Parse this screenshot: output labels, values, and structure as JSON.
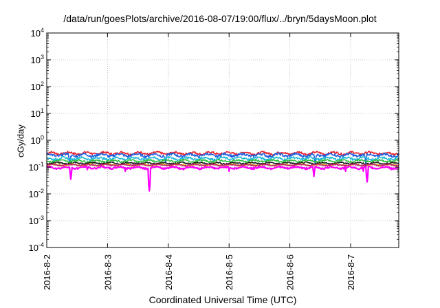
{
  "chart_data": {
    "type": "line",
    "title": "/data/run/goesPlots/archive/2016-08-07/19:00/flux/../bryn/5daysMoon.plot",
    "xlabel": "Coordinated Universal Time (UTC)",
    "ylabel": "cGy/day",
    "yscale": "log",
    "ylim": [
      0.0001,
      10000
    ],
    "y_ticks": [
      {
        "value": 0.0001,
        "base": "10",
        "exp": "-4"
      },
      {
        "value": 0.001,
        "base": "10",
        "exp": "-3"
      },
      {
        "value": 0.01,
        "base": "10",
        "exp": "-2"
      },
      {
        "value": 0.1,
        "base": "10",
        "exp": "-1"
      },
      {
        "value": 1,
        "base": "10",
        "exp": "0"
      },
      {
        "value": 10,
        "base": "10",
        "exp": "1"
      },
      {
        "value": 100,
        "base": "10",
        "exp": "2"
      },
      {
        "value": 1000,
        "base": "10",
        "exp": "3"
      },
      {
        "value": 10000,
        "base": "10",
        "exp": "4"
      }
    ],
    "xlim": [
      "2016-08-02T00:00",
      "2016-08-07T19:00"
    ],
    "x_ticks": [
      {
        "value": "2016-08-02T00:00",
        "label": "2016-8-2"
      },
      {
        "value": "2016-08-03T00:00",
        "label": "2016-8-3"
      },
      {
        "value": "2016-08-04T00:00",
        "label": "2016-8-4"
      },
      {
        "value": "2016-08-05T00:00",
        "label": "2016-8-5"
      },
      {
        "value": "2016-08-06T00:00",
        "label": "2016-8-6"
      },
      {
        "value": "2016-08-07T00:00",
        "label": "2016-8-7"
      }
    ],
    "grid": true,
    "series": [
      {
        "color": "#e8202a",
        "level": 0.33,
        "amp": 0.15,
        "dips": []
      },
      {
        "color": "#2060e0",
        "level": 0.28,
        "amp": 0.18,
        "dips": [
          {
            "x": "2016-08-02T09:00",
            "y": 0.13
          },
          {
            "x": "2016-08-03T23:00",
            "y": 0.14
          },
          {
            "x": "2016-08-06T10:00",
            "y": 0.13
          },
          {
            "x": "2016-08-07T06:00",
            "y": 0.13
          }
        ]
      },
      {
        "color": "#20b8d8",
        "level": 0.21,
        "amp": 0.15,
        "dips": []
      },
      {
        "color": "#30c040",
        "level": 0.17,
        "amp": 0.12,
        "dips": []
      },
      {
        "color": "#202020",
        "level": 0.14,
        "amp": 0.1,
        "dips": []
      },
      {
        "color": "#e0c000",
        "level": 0.12,
        "amp": 0.1,
        "dips": []
      },
      {
        "color": "#c02070",
        "level": 0.12,
        "amp": 0.08,
        "dips": []
      },
      {
        "color": "#ff00ff",
        "level": 0.095,
        "amp": 0.12,
        "dips": [
          {
            "x": "2016-08-02T09:30",
            "y": 0.035
          },
          {
            "x": "2016-08-02T16:00",
            "y": 0.08
          },
          {
            "x": "2016-08-03T07:00",
            "y": 0.07
          },
          {
            "x": "2016-08-03T16:30",
            "y": 0.013
          },
          {
            "x": "2016-08-04T06:00",
            "y": 0.08
          },
          {
            "x": "2016-08-05T00:00",
            "y": 0.07
          },
          {
            "x": "2016-08-06T09:30",
            "y": 0.045
          },
          {
            "x": "2016-08-06T22:00",
            "y": 0.07
          },
          {
            "x": "2016-08-07T05:00",
            "y": 0.07
          },
          {
            "x": "2016-08-07T06:30",
            "y": 0.028
          },
          {
            "x": "2016-08-07T16:00",
            "y": 0.08
          }
        ]
      }
    ]
  }
}
